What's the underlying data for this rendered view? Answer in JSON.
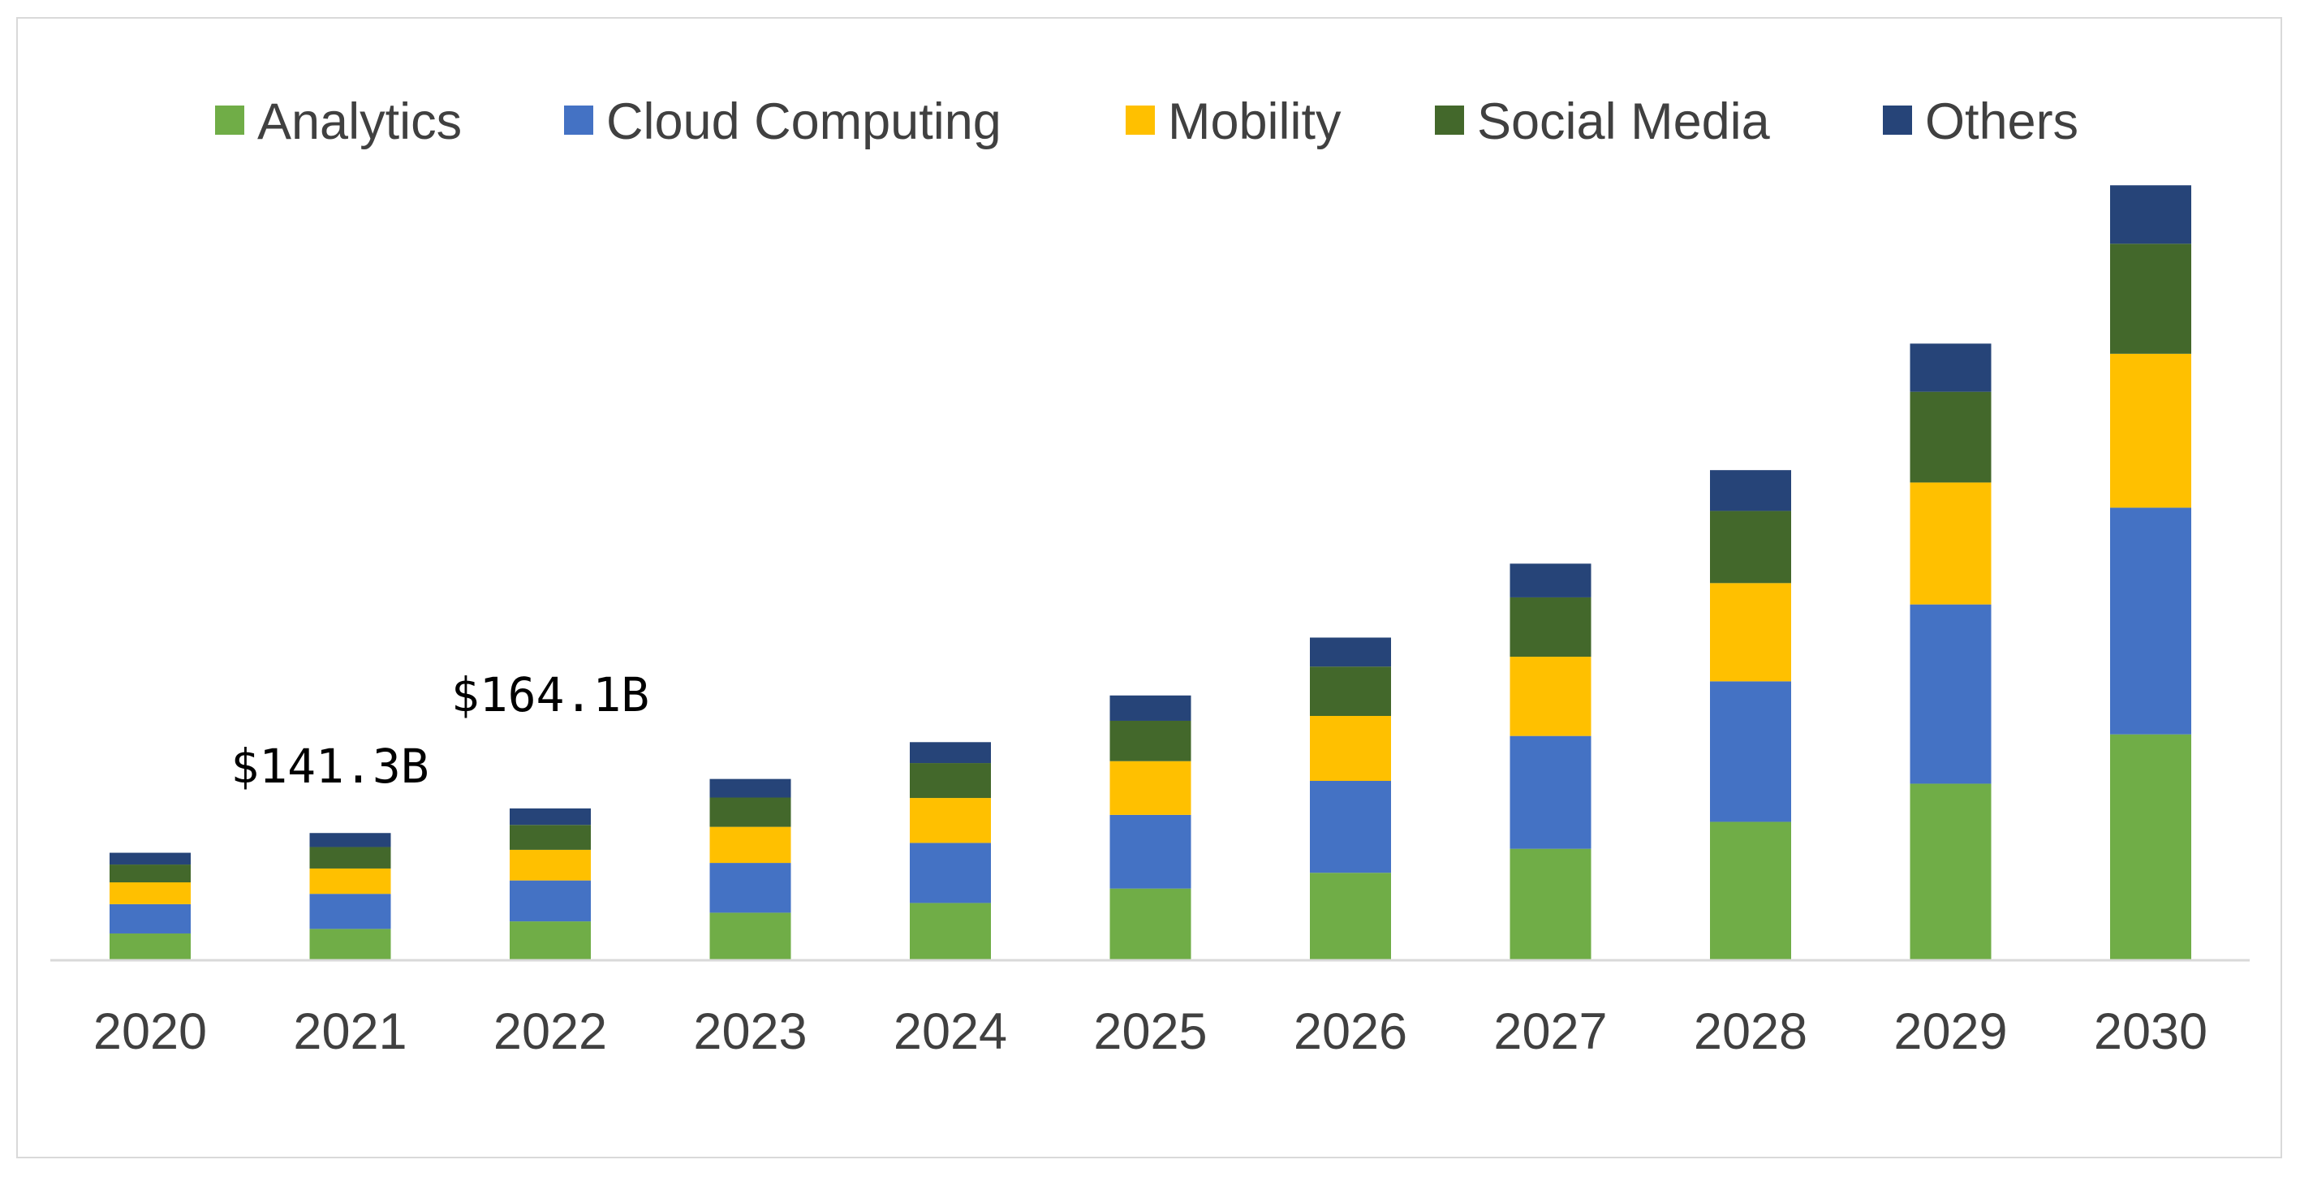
{
  "chart_data": {
    "type": "bar",
    "stacked": true,
    "title": "",
    "xlabel": "",
    "ylabel": "",
    "legend_position": "top",
    "grid": false,
    "ylim": [
      0,
      520
    ],
    "categories": [
      "2020",
      "2021",
      "2022",
      "2023",
      "2024",
      "2025",
      "2026",
      "2027",
      "2028",
      "2029",
      "2030"
    ],
    "series": [
      {
        "name": "Analytics",
        "color": "#70ad47",
        "values": [
          18.2,
          21.3,
          26.4,
          32.3,
          38.9,
          48.7,
          59.4,
          75.7,
          94.0,
          119.9,
          153.4
        ]
      },
      {
        "name": "Cloud Computing",
        "color": "#4472c4",
        "values": [
          19.9,
          23.8,
          27.8,
          33.8,
          40.8,
          50.0,
          62.4,
          76.6,
          95.4,
          121.7,
          153.9
        ]
      },
      {
        "name": "Mobility",
        "color": "#ffc000",
        "values": [
          14.8,
          17.2,
          20.8,
          24.5,
          30.5,
          36.5,
          44.1,
          53.8,
          66.7,
          82.8,
          104.5
        ]
      },
      {
        "name": "Social Media",
        "color": "#43682b",
        "values": [
          12.1,
          14.6,
          16.9,
          19.9,
          23.7,
          27.4,
          33.5,
          40.3,
          49.0,
          61.6,
          74.7
        ]
      },
      {
        "name": "Others",
        "color": "#264478",
        "values": [
          8.0,
          9.5,
          11.2,
          12.6,
          14.2,
          17.2,
          19.7,
          22.9,
          27.7,
          32.7,
          39.7
        ]
      }
    ],
    "annotations": [
      {
        "category": "2021",
        "text": "$141.3B"
      },
      {
        "category": "2022",
        "text": "$164.1B"
      }
    ]
  }
}
